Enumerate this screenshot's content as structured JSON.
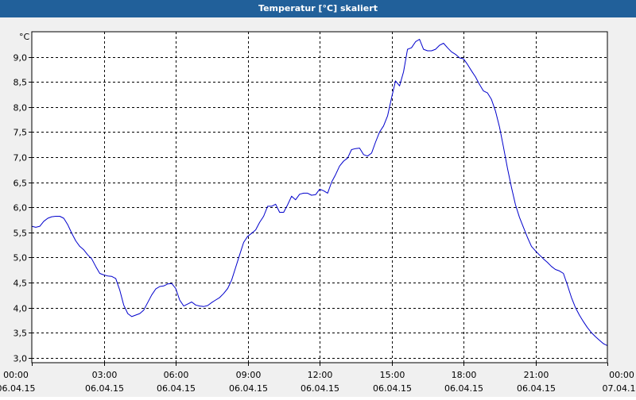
{
  "window": {
    "title": "Temperatur [°C] skaliert"
  },
  "colors": {
    "titlebar": "#21609a",
    "plot_background": "#ffffff",
    "series_line": "#0000cc",
    "grid": "#000000"
  },
  "chart_data": {
    "type": "line",
    "title": "Temperatur [°C] skaliert",
    "ylabel": "°C",
    "xlabel": "",
    "ylim": [
      2.9,
      9.5
    ],
    "xlim": [
      "2015-04-06 00:00",
      "2015-04-07 00:00"
    ],
    "grid": true,
    "y_ticks": [
      "3,0",
      "3,5",
      "4,0",
      "4,5",
      "5,0",
      "5,5",
      "6,0",
      "6,5",
      "7,0",
      "7,5",
      "8,0",
      "8,5",
      "9,0"
    ],
    "x_ticks": [
      {
        "time": "00:00",
        "date": "06.04.15"
      },
      {
        "time": "03:00",
        "date": "06.04.15"
      },
      {
        "time": "06:00",
        "date": "06.04.15"
      },
      {
        "time": "09:00",
        "date": "06.04.15"
      },
      {
        "time": "12:00",
        "date": "06.04.15"
      },
      {
        "time": "15:00",
        "date": "06.04.15"
      },
      {
        "time": "18:00",
        "date": "06.04.15"
      },
      {
        "time": "21:00",
        "date": "06.04.15"
      },
      {
        "time": "00:00",
        "date": "07.04.15"
      }
    ],
    "series": [
      {
        "color": "#0000cc",
        "points": [
          [
            "06.04.15 00:00",
            5.62
          ],
          [
            "06.04.15 00:10",
            5.6
          ],
          [
            "06.04.15 00:20",
            5.62
          ],
          [
            "06.04.15 00:30",
            5.72
          ],
          [
            "06.04.15 00:40",
            5.78
          ],
          [
            "06.04.15 00:50",
            5.81
          ],
          [
            "06.04.15 01:00",
            5.82
          ],
          [
            "06.04.15 01:10",
            5.82
          ],
          [
            "06.04.15 01:20",
            5.78
          ],
          [
            "06.04.15 01:30",
            5.65
          ],
          [
            "06.04.15 01:40",
            5.48
          ],
          [
            "06.04.15 01:50",
            5.33
          ],
          [
            "06.04.15 02:00",
            5.22
          ],
          [
            "06.04.15 02:10",
            5.15
          ],
          [
            "06.04.15 02:20",
            5.05
          ],
          [
            "06.04.15 02:30",
            4.97
          ],
          [
            "06.04.15 02:40",
            4.82
          ],
          [
            "06.04.15 02:50",
            4.68
          ],
          [
            "06.04.15 03:00",
            4.65
          ],
          [
            "06.04.15 03:10",
            4.63
          ],
          [
            "06.04.15 03:20",
            4.62
          ],
          [
            "06.04.15 03:30",
            4.58
          ],
          [
            "06.04.15 03:40",
            4.35
          ],
          [
            "06.04.15 03:50",
            4.05
          ],
          [
            "06.04.15 04:00",
            3.88
          ],
          [
            "06.04.15 04:10",
            3.82
          ],
          [
            "06.04.15 04:20",
            3.85
          ],
          [
            "06.04.15 04:30",
            3.88
          ],
          [
            "06.04.15 04:40",
            3.95
          ],
          [
            "06.04.15 04:50",
            4.1
          ],
          [
            "06.04.15 05:00",
            4.25
          ],
          [
            "06.04.15 05:10",
            4.37
          ],
          [
            "06.04.15 05:20",
            4.42
          ],
          [
            "06.04.15 05:30",
            4.43
          ],
          [
            "06.04.15 05:40",
            4.47
          ],
          [
            "06.04.15 05:50",
            4.48
          ],
          [
            "06.04.15 06:00",
            4.38
          ],
          [
            "06.04.15 06:10",
            4.15
          ],
          [
            "06.04.15 06:20",
            4.03
          ],
          [
            "06.04.15 06:30",
            4.07
          ],
          [
            "06.04.15 06:40",
            4.11
          ],
          [
            "06.04.15 06:50",
            4.05
          ],
          [
            "06.04.15 07:00",
            4.03
          ],
          [
            "06.04.15 07:10",
            4.02
          ],
          [
            "06.04.15 07:20",
            4.04
          ],
          [
            "06.04.15 07:30",
            4.1
          ],
          [
            "06.04.15 07:40",
            4.15
          ],
          [
            "06.04.15 07:50",
            4.2
          ],
          [
            "06.04.15 08:00",
            4.28
          ],
          [
            "06.04.15 08:10",
            4.38
          ],
          [
            "06.04.15 08:20",
            4.55
          ],
          [
            "06.04.15 08:30",
            4.8
          ],
          [
            "06.04.15 08:40",
            5.05
          ],
          [
            "06.04.15 08:50",
            5.3
          ],
          [
            "06.04.15 09:00",
            5.42
          ],
          [
            "06.04.15 09:10",
            5.48
          ],
          [
            "06.04.15 09:20",
            5.55
          ],
          [
            "06.04.15 09:30",
            5.7
          ],
          [
            "06.04.15 09:40",
            5.82
          ],
          [
            "06.04.15 09:50",
            6.02
          ],
          [
            "06.04.15 10:00",
            6.02
          ],
          [
            "06.04.15 10:10",
            6.06
          ],
          [
            "06.04.15 10:20",
            5.9
          ],
          [
            "06.04.15 10:30",
            5.9
          ],
          [
            "06.04.15 10:40",
            6.05
          ],
          [
            "06.04.15 10:50",
            6.22
          ],
          [
            "06.04.15 11:00",
            6.15
          ],
          [
            "06.04.15 11:10",
            6.26
          ],
          [
            "06.04.15 11:20",
            6.28
          ],
          [
            "06.04.15 11:30",
            6.28
          ],
          [
            "06.04.15 11:40",
            6.24
          ],
          [
            "06.04.15 11:50",
            6.25
          ],
          [
            "06.04.15 12:00",
            6.36
          ],
          [
            "06.04.15 12:10",
            6.33
          ],
          [
            "06.04.15 12:20",
            6.28
          ],
          [
            "06.04.15 12:30",
            6.5
          ],
          [
            "06.04.15 12:40",
            6.65
          ],
          [
            "06.04.15 12:50",
            6.82
          ],
          [
            "06.04.15 13:00",
            6.92
          ],
          [
            "06.04.15 13:10",
            6.98
          ],
          [
            "06.04.15 13:20",
            7.15
          ],
          [
            "06.04.15 13:30",
            7.17
          ],
          [
            "06.04.15 13:40",
            7.18
          ],
          [
            "06.04.15 13:50",
            7.05
          ],
          [
            "06.04.15 14:00",
            7.02
          ],
          [
            "06.04.15 14:10",
            7.08
          ],
          [
            "06.04.15 14:20",
            7.3
          ],
          [
            "06.04.15 14:30",
            7.5
          ],
          [
            "06.04.15 14:40",
            7.62
          ],
          [
            "06.04.15 14:50",
            7.82
          ],
          [
            "06.04.15 15:00",
            8.18
          ],
          [
            "06.04.15 15:10",
            8.52
          ],
          [
            "06.04.15 15:20",
            8.42
          ],
          [
            "06.04.15 15:30",
            8.7
          ],
          [
            "06.04.15 15:40",
            9.15
          ],
          [
            "06.04.15 15:50",
            9.18
          ],
          [
            "06.04.15 16:00",
            9.3
          ],
          [
            "06.04.15 16:10",
            9.35
          ],
          [
            "06.04.15 16:20",
            9.15
          ],
          [
            "06.04.15 16:30",
            9.12
          ],
          [
            "06.04.15 16:40",
            9.12
          ],
          [
            "06.04.15 16:50",
            9.15
          ],
          [
            "06.04.15 17:00",
            9.23
          ],
          [
            "06.04.15 17:10",
            9.27
          ],
          [
            "06.04.15 17:20",
            9.18
          ],
          [
            "06.04.15 17:30",
            9.1
          ],
          [
            "06.04.15 17:40",
            9.05
          ],
          [
            "06.04.15 17:50",
            8.98
          ],
          [
            "06.04.15 18:00",
            8.96
          ],
          [
            "06.04.15 18:10",
            8.85
          ],
          [
            "06.04.15 18:20",
            8.72
          ],
          [
            "06.04.15 18:30",
            8.6
          ],
          [
            "06.04.15 18:40",
            8.45
          ],
          [
            "06.04.15 18:50",
            8.32
          ],
          [
            "06.04.15 19:00",
            8.28
          ],
          [
            "06.04.15 19:10",
            8.15
          ],
          [
            "06.04.15 19:20",
            7.92
          ],
          [
            "06.04.15 19:30",
            7.6
          ],
          [
            "06.04.15 19:40",
            7.2
          ],
          [
            "06.04.15 19:50",
            6.78
          ],
          [
            "06.04.15 20:00",
            6.4
          ],
          [
            "06.04.15 20:10",
            6.05
          ],
          [
            "06.04.15 20:20",
            5.8
          ],
          [
            "06.04.15 20:30",
            5.6
          ],
          [
            "06.04.15 20:40",
            5.4
          ],
          [
            "06.04.15 20:50",
            5.22
          ],
          [
            "06.04.15 21:00",
            5.13
          ],
          [
            "06.04.15 21:10",
            5.05
          ],
          [
            "06.04.15 21:20",
            4.97
          ],
          [
            "06.04.15 21:30",
            4.9
          ],
          [
            "06.04.15 21:40",
            4.82
          ],
          [
            "06.04.15 21:50",
            4.76
          ],
          [
            "06.04.15 22:00",
            4.73
          ],
          [
            "06.04.15 22:10",
            4.68
          ],
          [
            "06.04.15 22:20",
            4.45
          ],
          [
            "06.04.15 22:30",
            4.2
          ],
          [
            "06.04.15 22:40",
            4.0
          ],
          [
            "06.04.15 22:50",
            3.85
          ],
          [
            "06.04.15 23:00",
            3.72
          ],
          [
            "06.04.15 23:10",
            3.6
          ],
          [
            "06.04.15 23:20",
            3.5
          ],
          [
            "06.04.15 23:30",
            3.42
          ],
          [
            "06.04.15 23:40",
            3.35
          ],
          [
            "06.04.15 23:50",
            3.28
          ],
          [
            "07.04.15 00:00",
            3.24
          ]
        ]
      }
    ]
  }
}
